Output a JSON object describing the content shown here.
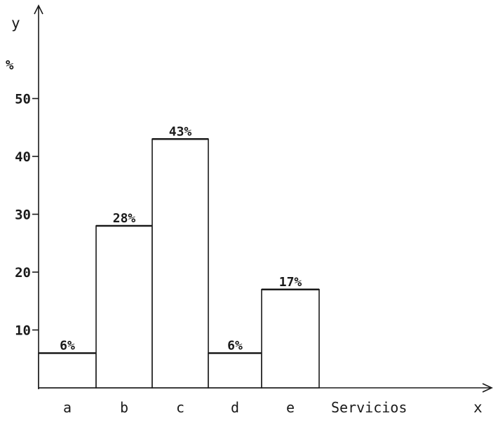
{
  "chart_data": {
    "type": "bar",
    "categories": [
      "a",
      "b",
      "c",
      "d",
      "e"
    ],
    "values": [
      6,
      28,
      43,
      6,
      17
    ],
    "data_labels": [
      "6%",
      "28%",
      "43%",
      "6%",
      "17%"
    ],
    "title": "",
    "xlabel": "Servicios",
    "ylabel": "y",
    "y_unit": "%",
    "x_axis_name": "x",
    "yticks": [
      10,
      20,
      30,
      40,
      50
    ],
    "ylim": [
      0,
      56
    ],
    "grid": false,
    "bar_style": "outlined, no gaps between bars"
  }
}
